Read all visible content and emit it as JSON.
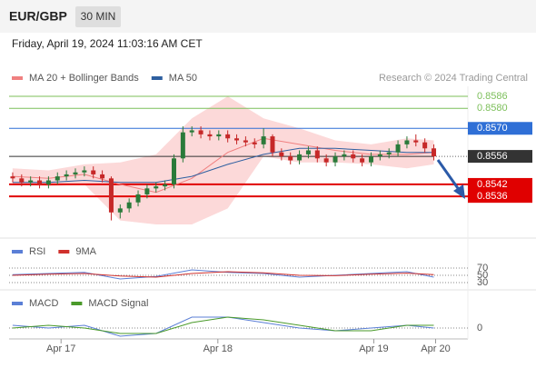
{
  "header": {
    "symbol": "EUR/GBP",
    "timeframe": "30 MIN",
    "timestamp": "Friday, April 19, 2024 11:03:16 AM CET"
  },
  "chart_data": [
    {
      "type": "candlestick",
      "credit": "Research © 2024 Trading Central",
      "up_color": "#2a7a3a",
      "down_color": "#c62828",
      "xlim": [
        -0.4,
        50.8
      ],
      "ylim": [
        0.8517,
        0.8591
      ],
      "open": [
        0.8546,
        0.8545,
        0.8543,
        0.8544,
        0.8542,
        0.8544,
        0.8546,
        0.8547,
        0.8548,
        0.8549,
        0.8547,
        0.8545,
        0.8528,
        0.853,
        0.8533,
        0.8537,
        0.854,
        0.8541,
        0.8542,
        0.8555,
        0.8568,
        0.8569,
        0.8567,
        0.8566,
        0.8567,
        0.8565,
        0.8564,
        0.8563,
        0.8562,
        0.8566,
        0.8558,
        0.8556,
        0.8554,
        0.8557,
        0.8559,
        0.8555,
        0.8553,
        0.8556,
        0.8557,
        0.8555,
        0.8553,
        0.8556,
        0.8557,
        0.8558,
        0.8562,
        0.8564,
        0.8563,
        0.856
      ],
      "high": [
        0.8548,
        0.8547,
        0.8546,
        0.8546,
        0.8546,
        0.8548,
        0.8549,
        0.855,
        0.8551,
        0.8551,
        0.8549,
        0.8546,
        0.8532,
        0.8535,
        0.8539,
        0.8542,
        0.8543,
        0.8544,
        0.8557,
        0.8571,
        0.8571,
        0.8571,
        0.8569,
        0.8569,
        0.8569,
        0.8567,
        0.8566,
        0.8565,
        0.857,
        0.8567,
        0.856,
        0.8558,
        0.8559,
        0.8561,
        0.8561,
        0.8557,
        0.8558,
        0.8559,
        0.8559,
        0.8557,
        0.8558,
        0.8559,
        0.856,
        0.8564,
        0.8566,
        0.8567,
        0.8565,
        0.8562
      ],
      "low": [
        0.8543,
        0.8541,
        0.8541,
        0.854,
        0.854,
        0.8542,
        0.8544,
        0.8545,
        0.8546,
        0.8545,
        0.8543,
        0.8524,
        0.8525,
        0.8528,
        0.8531,
        0.8535,
        0.8538,
        0.8539,
        0.854,
        0.8553,
        0.8566,
        0.8565,
        0.8564,
        0.8564,
        0.8563,
        0.8562,
        0.8561,
        0.856,
        0.856,
        0.8556,
        0.8554,
        0.8552,
        0.8552,
        0.8555,
        0.8553,
        0.8551,
        0.8551,
        0.8554,
        0.8553,
        0.8551,
        0.8551,
        0.8554,
        0.8555,
        0.8556,
        0.856,
        0.8561,
        0.8558,
        0.8554
      ],
      "close": [
        0.8545,
        0.8543,
        0.8544,
        0.8542,
        0.8544,
        0.8546,
        0.8547,
        0.8548,
        0.8549,
        0.8547,
        0.8545,
        0.8528,
        0.853,
        0.8533,
        0.8537,
        0.854,
        0.8541,
        0.8542,
        0.8555,
        0.8568,
        0.8569,
        0.8567,
        0.8566,
        0.8567,
        0.8565,
        0.8564,
        0.8563,
        0.8562,
        0.8566,
        0.8558,
        0.8556,
        0.8554,
        0.8557,
        0.8559,
        0.8555,
        0.8553,
        0.8556,
        0.8557,
        0.8555,
        0.8553,
        0.8556,
        0.8557,
        0.8558,
        0.8562,
        0.8564,
        0.8563,
        0.856,
        0.8556
      ],
      "series": [
        {
          "name": "MA 20 + Bollinger Bands",
          "color": "#f08080",
          "band_color": "#fcd9d9",
          "x": [
            0,
            4,
            8,
            12,
            16,
            20,
            24,
            28,
            32,
            36,
            40,
            44,
            47
          ],
          "values": [
            0.8546,
            0.8545,
            0.8547,
            0.8542,
            0.8538,
            0.8545,
            0.8558,
            0.8565,
            0.8562,
            0.8559,
            0.8557,
            0.8557,
            0.8558
          ],
          "upper": [
            0.855,
            0.8549,
            0.8552,
            0.8553,
            0.8557,
            0.8575,
            0.8586,
            0.8575,
            0.857,
            0.8564,
            0.8562,
            0.8565,
            0.8564
          ],
          "lower": [
            0.8542,
            0.8541,
            0.8542,
            0.8524,
            0.8522,
            0.8522,
            0.853,
            0.8556,
            0.8553,
            0.8553,
            0.8552,
            0.855,
            0.8552
          ]
        },
        {
          "name": "MA 50",
          "color": "#2e5fa0",
          "x": [
            0,
            4,
            8,
            12,
            16,
            20,
            24,
            28,
            32,
            36,
            40,
            44,
            47
          ],
          "values": [
            0.8543,
            0.8543,
            0.8544,
            0.8543,
            0.8543,
            0.8546,
            0.8552,
            0.8557,
            0.856,
            0.856,
            0.8559,
            0.8558,
            0.8558
          ]
        }
      ],
      "levels": [
        {
          "value": 0.8586,
          "color": "#7cbf5a",
          "boxed": false,
          "dotted": false
        },
        {
          "value": 0.858,
          "label": "0.8580",
          "color": "#7cbf5a",
          "boxed": false,
          "dotted": false
        },
        {
          "value": 0.857,
          "label": "0.8570",
          "color": "#2f6fd6",
          "boxed": true,
          "dotted": false
        },
        {
          "value": 0.8556,
          "color": "#333333",
          "boxed": true,
          "dotted": true
        },
        {
          "value": 0.8542,
          "color": "#e00000",
          "boxed": true,
          "dotted": false
        },
        {
          "value": 0.8536,
          "color": "#e00000",
          "boxed": true,
          "dotted": false
        }
      ]
    },
    {
      "type": "line",
      "xlim": [
        -0.4,
        50.8
      ],
      "ylim": [
        10,
        140
      ],
      "yticks": [
        70,
        50,
        30
      ],
      "series": [
        {
          "name": "RSI",
          "color": "#5b7fd6",
          "x": [
            0,
            4,
            8,
            12,
            16,
            20,
            24,
            28,
            32,
            36,
            40,
            44,
            47
          ],
          "values": [
            52,
            55,
            58,
            40,
            47,
            65,
            58,
            55,
            45,
            50,
            55,
            60,
            45
          ]
        },
        {
          "name": "9MA",
          "color": "#d0312d",
          "x": [
            0,
            4,
            8,
            12,
            16,
            20,
            24,
            28,
            32,
            36,
            40,
            44,
            47
          ],
          "values": [
            50,
            53,
            55,
            48,
            45,
            55,
            60,
            57,
            50,
            49,
            53,
            56,
            52
          ]
        }
      ]
    },
    {
      "type": "line",
      "xlim": [
        -0.4,
        50.8
      ],
      "ylim": [
        -0.0004,
        0.0012
      ],
      "yticks": [
        0
      ],
      "xticks": [
        {
          "value": 5.4,
          "label": "Apr 17"
        },
        {
          "value": 22.9,
          "label": "Apr 18"
        },
        {
          "value": 40.3,
          "label": "Apr 19"
        },
        {
          "value": 47.2,
          "label": "Apr 20"
        }
      ],
      "series": [
        {
          "name": "MACD",
          "color": "#5b7fd6",
          "x": [
            0,
            4,
            8,
            12,
            16,
            20,
            24,
            28,
            32,
            36,
            40,
            44,
            47
          ],
          "values": [
            0.0001,
            0,
            0.0001,
            -0.0003,
            -0.0002,
            0.0004,
            0.0004,
            0.0002,
            0,
            -0.0001,
            0,
            0.0001,
            0
          ]
        },
        {
          "name": "MACD Signal",
          "color": "#4a9a2a",
          "x": [
            0,
            4,
            8,
            12,
            16,
            20,
            24,
            28,
            32,
            36,
            40,
            44,
            47
          ],
          "values": [
            0,
            0.0001,
            0,
            -0.0002,
            -0.0002,
            0.0002,
            0.0004,
            0.0003,
            0.0001,
            -0.0001,
            -0.0001,
            0.0001,
            0.0001
          ]
        }
      ]
    }
  ]
}
